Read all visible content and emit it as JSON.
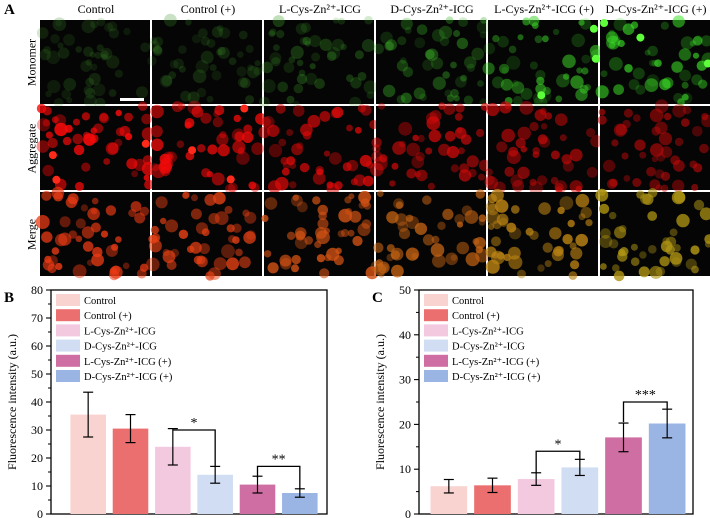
{
  "panels": {
    "a": "A",
    "b": "B",
    "c": "C"
  },
  "image_grid": {
    "columns": [
      "Control",
      "Control (+)",
      "L-Cys-Zn²⁺-ICG",
      "D-Cys-Zn²⁺-ICG",
      "L-Cys-Zn²⁺-ICG (+)",
      "D-Cys-Zn²⁺-ICG (+)"
    ],
    "rows": [
      "Monomer",
      "Aggregate",
      "Merge"
    ],
    "monomer_intensity": [
      0.15,
      0.2,
      0.35,
      0.5,
      0.75,
      0.9
    ],
    "aggregate_intensity": [
      0.95,
      0.9,
      0.75,
      0.65,
      0.55,
      0.45
    ]
  },
  "chart_data": [
    {
      "type": "bar",
      "panel": "B",
      "ylabel": "Fluorescence intensity (a.u.)",
      "ylim": [
        0,
        80
      ],
      "yticks": [
        "0",
        "10",
        "20",
        "30",
        "40",
        "50",
        "60",
        "70",
        "80"
      ],
      "categories": [
        "Control",
        "Control (+)",
        "L-Cys-Zn²⁺-ICG",
        "D-Cys-Zn²⁺-ICG",
        "L-Cys-Zn²⁺-ICG (+)",
        "D-Cys-Zn²⁺-ICG (+)"
      ],
      "values": [
        35.5,
        30.5,
        24,
        14,
        10.5,
        7.5
      ],
      "errors": [
        8,
        5,
        6.5,
        3,
        3,
        1.5
      ],
      "colors": [
        "#f8d3cf",
        "#eb6f6f",
        "#f3c9e0",
        "#d0ddf3",
        "#cf6ea3",
        "#9ab5e4"
      ],
      "significance": [
        {
          "from": 2,
          "to": 3,
          "label": "*",
          "height": 30,
          "drop_left": 30,
          "drop_right": 17
        },
        {
          "from": 4,
          "to": 5,
          "label": "**",
          "height": 17,
          "drop_left": 13,
          "drop_right": 9
        }
      ],
      "legend_position": "top-left"
    },
    {
      "type": "bar",
      "panel": "C",
      "ylabel": "Fluorescence intensity (a.u.)",
      "ylim": [
        0,
        50
      ],
      "yticks": [
        "0",
        "10",
        "20",
        "30",
        "40",
        "50"
      ],
      "categories": [
        "Control",
        "Control (+)",
        "L-Cys-Zn²⁺-ICG",
        "D-Cys-Zn²⁺-ICG",
        "L-Cys-Zn²⁺-ICG (+)",
        "D-Cys-Zn²⁺-ICG (+)"
      ],
      "values": [
        6.2,
        6.4,
        7.8,
        10.4,
        17.1,
        20.2
      ],
      "errors": [
        1.5,
        1.6,
        1.4,
        1.8,
        3.2,
        3.2
      ],
      "colors": [
        "#f8d3cf",
        "#eb6f6f",
        "#f3c9e0",
        "#d0ddf3",
        "#cf6ea3",
        "#9ab5e4"
      ],
      "significance": [
        {
          "from": 2,
          "to": 3,
          "label": "*",
          "height": 14,
          "drop_left": 9,
          "drop_right": 12
        },
        {
          "from": 4,
          "to": 5,
          "label": "***",
          "height": 25,
          "drop_left": 20.5,
          "drop_right": 23.5
        }
      ],
      "legend_position": "top-left"
    }
  ]
}
